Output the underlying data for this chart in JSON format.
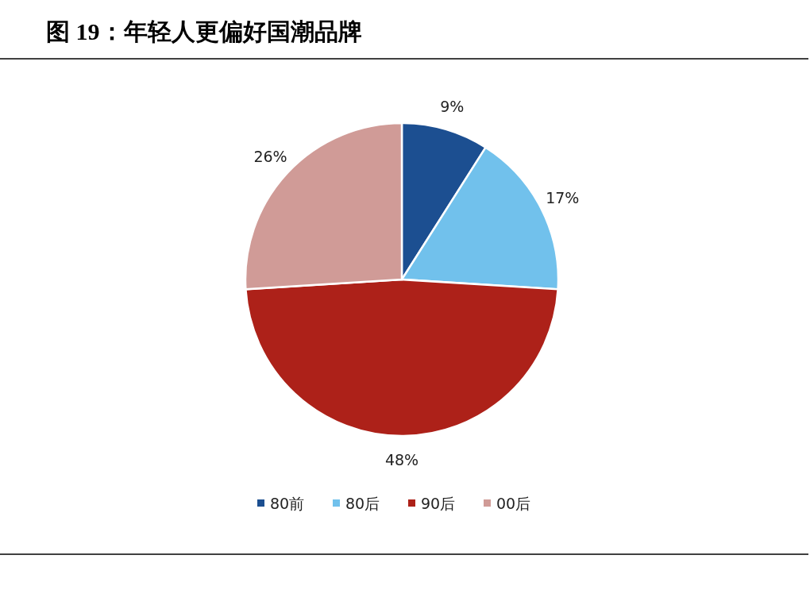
{
  "chart_data": {
    "type": "pie",
    "title": "图 19：年轻人更偏好国潮品牌",
    "categories": [
      "80前",
      "80后",
      "90后",
      "00后"
    ],
    "values": [
      9,
      17,
      48,
      26
    ],
    "colors": [
      "#1c4f91",
      "#71c1ec",
      "#ad2119",
      "#d09b97"
    ],
    "value_labels": [
      "9%",
      "17%",
      "48%",
      "26%"
    ],
    "legend": "bottom"
  }
}
